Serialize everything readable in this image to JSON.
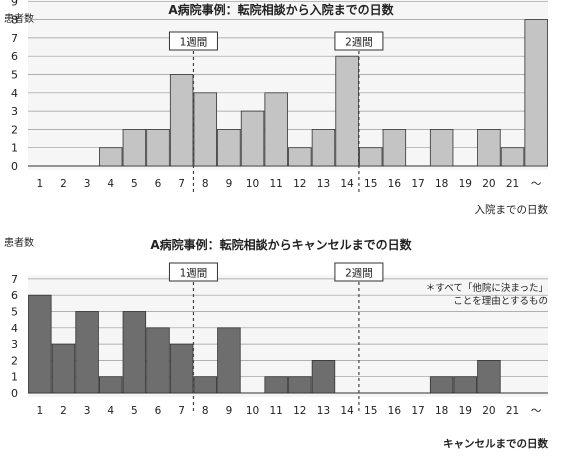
{
  "chart_data": [
    {
      "type": "bar",
      "title": "A病院事例：転院相談から入院までの日数",
      "ylabel": "患者数",
      "xlabel": "入院までの日数",
      "categories": [
        "1",
        "2",
        "3",
        "4",
        "5",
        "6",
        "7",
        "8",
        "9",
        "10",
        "11",
        "12",
        "13",
        "14",
        "15",
        "16",
        "17",
        "18",
        "19",
        "20",
        "21",
        "～"
      ],
      "values": [
        0,
        0,
        0,
        1,
        2,
        2,
        5,
        4,
        2,
        3,
        4,
        1,
        2,
        6,
        1,
        2,
        0,
        2,
        0,
        2,
        1,
        8
      ],
      "yticks": [
        "0",
        "1",
        "2",
        "3",
        "4",
        "5",
        "6",
        "7",
        "8",
        "9"
      ],
      "ylim": [
        0,
        9
      ],
      "markers": [
        {
          "label": "1週間",
          "after": "7"
        },
        {
          "label": "2週間",
          "after": "14"
        }
      ],
      "bar_color": "#c4c4c4",
      "grid": true
    },
    {
      "type": "bar",
      "title": "A病院事例：転院相談からキャンセルまでの日数",
      "ylabel": "患者数",
      "xlabel": "キャンセルまでの日数",
      "categories": [
        "1",
        "2",
        "3",
        "4",
        "5",
        "6",
        "7",
        "8",
        "9",
        "10",
        "11",
        "12",
        "13",
        "14",
        "15",
        "16",
        "17",
        "18",
        "19",
        "20",
        "21",
        "～"
      ],
      "values": [
        6,
        3,
        5,
        1,
        5,
        4,
        3,
        1,
        4,
        0,
        1,
        1,
        2,
        0,
        0,
        0,
        0,
        1,
        1,
        2,
        0,
        0
      ],
      "yticks": [
        "0",
        "1",
        "2",
        "3",
        "4",
        "5",
        "6",
        "7"
      ],
      "ylim": [
        0,
        7
      ],
      "markers": [
        {
          "label": "1週間",
          "after": "7"
        },
        {
          "label": "2週間",
          "after": "14"
        }
      ],
      "note": [
        "＊すべて「他院に決まった」",
        "ことを理由とするもの"
      ],
      "bar_color": "#6e6e6e",
      "grid": true
    }
  ]
}
